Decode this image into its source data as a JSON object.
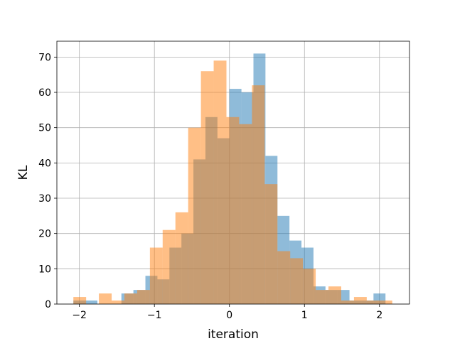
{
  "chart_data": {
    "type": "bar",
    "subtype": "overlaid-histogram",
    "title": "",
    "xlabel": "iteration",
    "ylabel": "KL",
    "xlim": [
      -2.3,
      2.4
    ],
    "ylim": [
      0,
      74.5
    ],
    "xticks": [
      -2,
      -1,
      0,
      1,
      2
    ],
    "xtick_labels": [
      "−2",
      "−1",
      "0",
      "1",
      "2"
    ],
    "yticks": [
      0,
      10,
      20,
      30,
      40,
      50,
      60,
      70
    ],
    "ytick_labels": [
      "0",
      "10",
      "20",
      "30",
      "40",
      "50",
      "60",
      "70"
    ],
    "grid": true,
    "legend": "none",
    "series": [
      {
        "color": "#1f77b4",
        "opacity": 0.5,
        "bin_edges": [
          -2.08,
          -1.92,
          -1.76,
          -1.6,
          -1.44,
          -1.28,
          -1.12,
          -0.96,
          -0.8,
          -0.64,
          -0.48,
          -0.32,
          -0.16,
          0.0,
          0.16,
          0.32,
          0.48,
          0.64,
          0.8,
          0.96,
          1.12,
          1.28,
          1.44,
          1.6,
          1.76,
          1.92,
          2.08
        ],
        "counts": [
          1,
          1,
          0,
          0,
          3,
          4,
          8,
          7,
          16,
          20,
          41,
          53,
          47,
          61,
          60,
          71,
          42,
          25,
          18,
          16,
          5,
          4,
          4,
          1,
          1,
          3
        ]
      },
      {
        "color": "#ff7f0e",
        "opacity": 0.5,
        "bin_edges": [
          -2.08,
          -1.91,
          -1.74,
          -1.57,
          -1.4,
          -1.23,
          -1.06,
          -0.89,
          -0.72,
          -0.55,
          -0.38,
          -0.21,
          -0.04,
          0.13,
          0.3,
          0.47,
          0.64,
          0.81,
          0.98,
          1.15,
          1.32,
          1.49,
          1.66,
          1.83,
          2.0,
          2.17
        ],
        "counts": [
          2,
          0,
          3,
          1,
          3,
          4,
          16,
          21,
          26,
          50,
          66,
          69,
          53,
          51,
          62,
          34,
          15,
          13,
          10,
          4,
          5,
          1,
          2,
          1,
          1
        ]
      }
    ]
  }
}
